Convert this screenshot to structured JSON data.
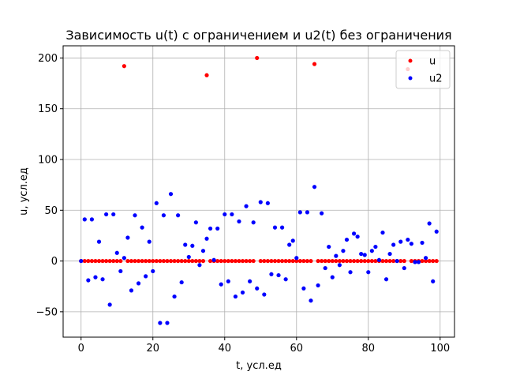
{
  "chart_data": {
    "type": "scatter",
    "title": "Зависимость u(t) с ограничением и u2(t) без ограничения",
    "xlabel": "t, усл.ед",
    "ylabel": "u, усл.ед",
    "xlim": [
      -5,
      104
    ],
    "ylim": [
      -75,
      212
    ],
    "x_ticks": [
      0,
      20,
      40,
      60,
      80,
      100
    ],
    "y_ticks": [
      -50,
      0,
      50,
      100,
      150,
      200
    ],
    "grid": true,
    "legend_position": "top-right",
    "series": [
      {
        "name": "u",
        "color": "#ff0000",
        "points": [
          [
            0,
            0
          ],
          [
            1,
            0
          ],
          [
            2,
            0
          ],
          [
            3,
            0
          ],
          [
            4,
            0
          ],
          [
            5,
            0
          ],
          [
            6,
            0
          ],
          [
            7,
            0
          ],
          [
            8,
            0
          ],
          [
            9,
            0
          ],
          [
            10,
            0
          ],
          [
            11,
            0
          ],
          [
            12,
            192
          ],
          [
            13,
            0
          ],
          [
            14,
            0
          ],
          [
            15,
            0
          ],
          [
            16,
            0
          ],
          [
            17,
            0
          ],
          [
            18,
            0
          ],
          [
            19,
            0
          ],
          [
            20,
            0
          ],
          [
            21,
            0
          ],
          [
            22,
            0
          ],
          [
            23,
            0
          ],
          [
            24,
            0
          ],
          [
            25,
            0
          ],
          [
            26,
            0
          ],
          [
            27,
            0
          ],
          [
            28,
            0
          ],
          [
            29,
            0
          ],
          [
            30,
            0
          ],
          [
            31,
            0
          ],
          [
            32,
            0
          ],
          [
            33,
            0
          ],
          [
            34,
            0
          ],
          [
            35,
            183
          ],
          [
            36,
            0
          ],
          [
            37,
            0
          ],
          [
            38,
            0
          ],
          [
            39,
            0
          ],
          [
            40,
            0
          ],
          [
            41,
            0
          ],
          [
            42,
            0
          ],
          [
            43,
            0
          ],
          [
            44,
            0
          ],
          [
            45,
            0
          ],
          [
            46,
            0
          ],
          [
            47,
            0
          ],
          [
            48,
            0
          ],
          [
            49,
            200
          ],
          [
            50,
            0
          ],
          [
            51,
            0
          ],
          [
            52,
            0
          ],
          [
            53,
            0
          ],
          [
            54,
            0
          ],
          [
            55,
            0
          ],
          [
            56,
            0
          ],
          [
            57,
            0
          ],
          [
            58,
            0
          ],
          [
            59,
            0
          ],
          [
            60,
            0
          ],
          [
            61,
            0
          ],
          [
            62,
            0
          ],
          [
            63,
            0
          ],
          [
            64,
            0
          ],
          [
            65,
            194
          ],
          [
            66,
            0
          ],
          [
            67,
            0
          ],
          [
            68,
            0
          ],
          [
            69,
            0
          ],
          [
            70,
            0
          ],
          [
            71,
            0
          ],
          [
            72,
            0
          ],
          [
            73,
            0
          ],
          [
            74,
            0
          ],
          [
            75,
            0
          ],
          [
            76,
            0
          ],
          [
            77,
            0
          ],
          [
            78,
            0
          ],
          [
            79,
            0
          ],
          [
            80,
            0
          ],
          [
            81,
            0
          ],
          [
            82,
            0
          ],
          [
            83,
            0
          ],
          [
            84,
            0
          ],
          [
            85,
            0
          ],
          [
            86,
            0
          ],
          [
            87,
            0
          ],
          [
            88,
            0
          ],
          [
            89,
            0
          ],
          [
            90,
            0
          ],
          [
            91,
            189
          ],
          [
            92,
            0
          ],
          [
            93,
            0
          ],
          [
            94,
            0
          ],
          [
            95,
            0
          ],
          [
            96,
            0
          ],
          [
            97,
            0
          ],
          [
            98,
            0
          ],
          [
            99,
            0
          ]
        ]
      },
      {
        "name": "u2",
        "color": "#0000ff",
        "points": [
          [
            0,
            0
          ],
          [
            1,
            41
          ],
          [
            2,
            -19
          ],
          [
            3,
            41
          ],
          [
            4,
            -16
          ],
          [
            5,
            19
          ],
          [
            6,
            -18
          ],
          [
            7,
            46
          ],
          [
            8,
            -43
          ],
          [
            9,
            46
          ],
          [
            10,
            8
          ],
          [
            11,
            -10
          ],
          [
            12,
            3
          ],
          [
            13,
            23
          ],
          [
            14,
            -29
          ],
          [
            15,
            45
          ],
          [
            16,
            -22
          ],
          [
            17,
            33
          ],
          [
            18,
            -15
          ],
          [
            19,
            19
          ],
          [
            20,
            -10
          ],
          [
            21,
            57
          ],
          [
            22,
            -61
          ],
          [
            23,
            45
          ],
          [
            24,
            -61
          ],
          [
            25,
            66
          ],
          [
            26,
            -35
          ],
          [
            27,
            45
          ],
          [
            28,
            -21
          ],
          [
            29,
            16
          ],
          [
            30,
            4
          ],
          [
            31,
            15
          ],
          [
            32,
            38
          ],
          [
            33,
            -4
          ],
          [
            34,
            10
          ],
          [
            35,
            22
          ],
          [
            36,
            32
          ],
          [
            37,
            1
          ],
          [
            38,
            32
          ],
          [
            39,
            -23
          ],
          [
            40,
            46
          ],
          [
            41,
            -20
          ],
          [
            42,
            46
          ],
          [
            43,
            -35
          ],
          [
            44,
            39
          ],
          [
            45,
            -31
          ],
          [
            46,
            54
          ],
          [
            47,
            -20
          ],
          [
            48,
            38
          ],
          [
            49,
            -27
          ],
          [
            50,
            58
          ],
          [
            51,
            -33
          ],
          [
            52,
            57
          ],
          [
            53,
            -13
          ],
          [
            54,
            33
          ],
          [
            55,
            -14
          ],
          [
            56,
            33
          ],
          [
            57,
            -18
          ],
          [
            58,
            16
          ],
          [
            59,
            20
          ],
          [
            60,
            3
          ],
          [
            61,
            48
          ],
          [
            62,
            -27
          ],
          [
            63,
            48
          ],
          [
            64,
            -39
          ],
          [
            65,
            73
          ],
          [
            66,
            -24
          ],
          [
            67,
            47
          ],
          [
            68,
            -7
          ],
          [
            69,
            14
          ],
          [
            70,
            -16
          ],
          [
            71,
            5
          ],
          [
            72,
            -4
          ],
          [
            73,
            10
          ],
          [
            74,
            21
          ],
          [
            75,
            -11
          ],
          [
            76,
            27
          ],
          [
            77,
            24
          ],
          [
            78,
            7
          ],
          [
            79,
            6
          ],
          [
            80,
            -11
          ],
          [
            81,
            10
          ],
          [
            82,
            14
          ],
          [
            83,
            1
          ],
          [
            84,
            28
          ],
          [
            85,
            -18
          ],
          [
            86,
            7
          ],
          [
            87,
            16
          ],
          [
            88,
            0
          ],
          [
            89,
            19
          ],
          [
            90,
            -7
          ],
          [
            91,
            21
          ],
          [
            92,
            17
          ],
          [
            93,
            -1
          ],
          [
            94,
            -1
          ],
          [
            95,
            18
          ],
          [
            96,
            3
          ],
          [
            97,
            37
          ],
          [
            98,
            -20
          ],
          [
            99,
            29
          ]
        ]
      }
    ]
  }
}
